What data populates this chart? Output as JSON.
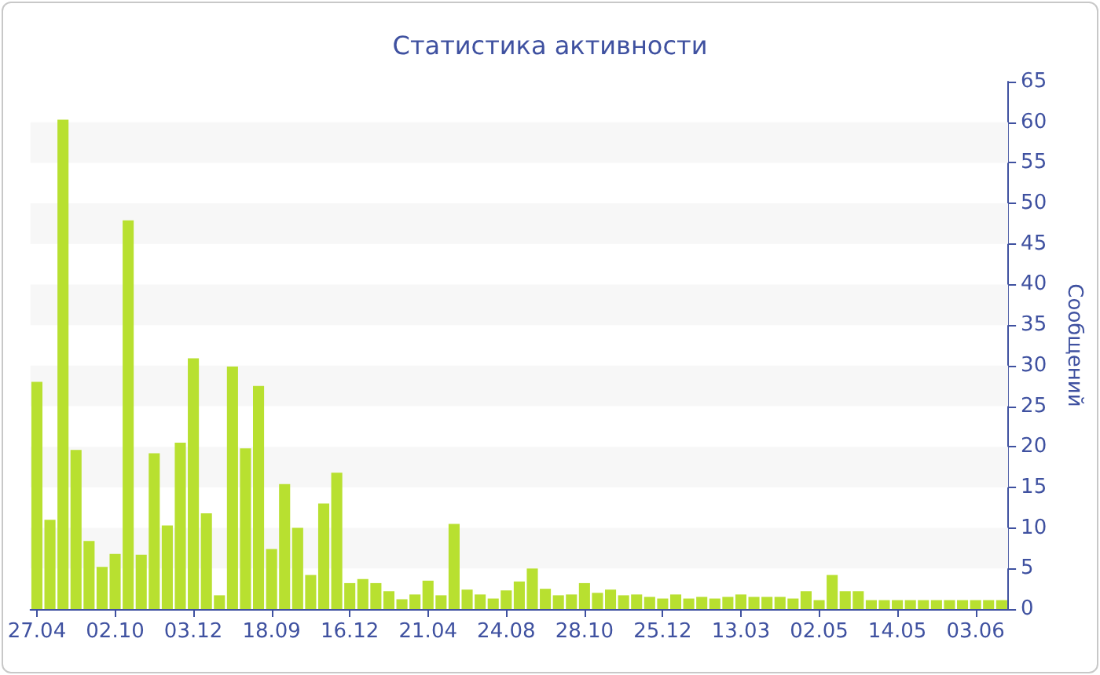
{
  "chart_data": {
    "type": "bar",
    "title": "Статистика активности",
    "ylabel": "Сообщений",
    "color": "#b8e030",
    "categories": [
      "27.04",
      null,
      null,
      null,
      null,
      null,
      "02.10",
      null,
      null,
      null,
      null,
      null,
      "03.12",
      null,
      null,
      null,
      null,
      null,
      "18.09",
      null,
      null,
      null,
      null,
      null,
      "16.12",
      null,
      null,
      null,
      null,
      null,
      "21.04",
      null,
      null,
      null,
      null,
      null,
      "24.08",
      null,
      null,
      null,
      null,
      null,
      "28.10",
      null,
      null,
      null,
      null,
      null,
      "25.12",
      null,
      null,
      null,
      null,
      null,
      "13.03",
      null,
      null,
      null,
      null,
      null,
      "02.05",
      null,
      null,
      null,
      null,
      null,
      "14.05",
      null,
      null,
      null,
      null,
      null,
      "03.06",
      null,
      null
    ],
    "values": [
      28,
      11,
      60.3,
      19.6,
      8.4,
      5.2,
      6.8,
      47.9,
      6.7,
      19.2,
      10.3,
      20.5,
      30.9,
      11.8,
      1.7,
      29.9,
      19.8,
      27.5,
      7.4,
      15.4,
      10,
      4.2,
      13,
      16.8,
      3.2,
      3.7,
      3.2,
      2.2,
      1.2,
      1.8,
      3.5,
      1.7,
      10.5,
      2.4,
      1.8,
      1.3,
      2.3,
      3.4,
      5,
      2.5,
      1.7,
      1.8,
      3.2,
      2,
      2.4,
      1.7,
      1.8,
      1.5,
      1.3,
      1.8,
      1.3,
      1.5,
      1.3,
      1.5,
      1.8,
      1.5,
      1.5,
      1.5,
      1.3,
      2.2,
      1.1,
      4.2,
      2.2,
      2.2,
      1.1,
      1.1,
      1.1,
      1.1,
      1.1,
      1.1,
      1.1,
      1.1,
      1.1,
      1.1,
      1.1
    ],
    "ylim": [
      0,
      65
    ],
    "yticks": [
      0,
      5,
      10,
      15,
      20,
      25,
      30,
      35,
      40,
      45,
      50,
      55,
      60,
      65
    ],
    "bands": [
      {
        "axis": "y",
        "from": 5,
        "to": 10,
        "color": "#f7f7f7"
      },
      {
        "axis": "y",
        "from": 15,
        "to": 20,
        "color": "#f7f7f7"
      },
      {
        "axis": "y",
        "from": 25,
        "to": 30,
        "color": "#f7f7f7"
      },
      {
        "axis": "y",
        "from": 35,
        "to": 40,
        "color": "#f7f7f7"
      },
      {
        "axis": "y",
        "from": 45,
        "to": 50,
        "color": "#f7f7f7"
      },
      {
        "axis": "y",
        "from": 55,
        "to": 60,
        "color": "#f7f7f7"
      }
    ]
  }
}
